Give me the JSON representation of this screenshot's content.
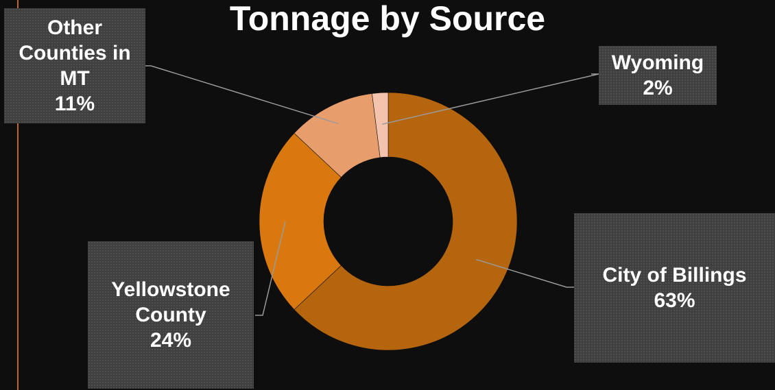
{
  "chart_data": {
    "type": "pie",
    "title": "Tonnage by Source",
    "donut": true,
    "categories": [
      "City of Billings",
      "Yellowstone County",
      "Other Counties in MT",
      "Wyoming"
    ],
    "values": [
      63,
      24,
      11,
      2
    ],
    "labels": [
      {
        "name": "City of Billings",
        "percent": "63%"
      },
      {
        "name": "Yellowstone County",
        "percent": "24%"
      },
      {
        "name": "Other Counties in MT",
        "percent": "11%"
      },
      {
        "name": "Wyoming",
        "percent": "2%"
      }
    ],
    "colors": [
      "#b5650d",
      "#d8780f",
      "#e89d6c",
      "#f3c3ad"
    ]
  }
}
